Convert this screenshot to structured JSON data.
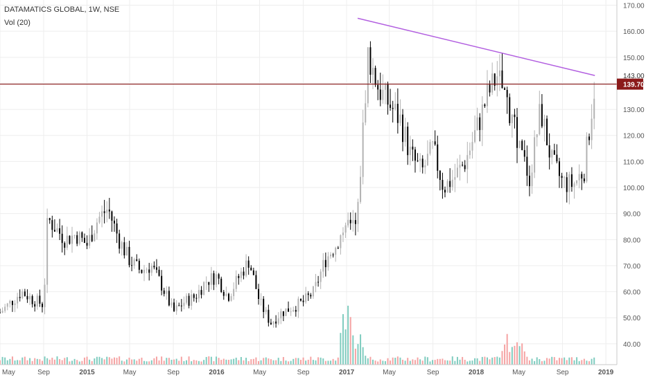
{
  "header": {
    "title": "DATAMATICS GLOBAL, 1W, NSE",
    "volume_indicator": "Vol (20)"
  },
  "colors": {
    "up_candle": "#b2b2b2",
    "down_candle": "#000000",
    "volume_up": "#7fccbf",
    "volume_down": "#f5a3a3",
    "trendline": "#b25fe0",
    "support_line": "#8b1a1a",
    "price_tag": "#8b1a1a",
    "grid": "#eeeeee",
    "axis_text": "#555555"
  },
  "chart_data": {
    "type": "candlestick",
    "symbol": "DATAMATICS GLOBAL",
    "interval": "1W",
    "exchange": "NSE",
    "y_axis": {
      "position": "right",
      "ylim": [
        32,
        172
      ],
      "ticks": [
        "40.00",
        "50.00",
        "60.00",
        "70.00",
        "80.00",
        "90.00",
        "100.00",
        "110.00",
        "120.00",
        "130.00",
        "140.00",
        "150.00",
        "160.00",
        "170.00"
      ]
    },
    "x_axis": {
      "start": "2014-05",
      "end": "2019-02",
      "tick_labels": [
        {
          "label": "May",
          "date": "2014-05"
        },
        {
          "label": "Sep",
          "date": "2014-09"
        },
        {
          "label": "2015",
          "date": "2015-01",
          "bold": true
        },
        {
          "label": "May",
          "date": "2015-05"
        },
        {
          "label": "Sep",
          "date": "2015-09"
        },
        {
          "label": "2016",
          "date": "2016-01",
          "bold": true
        },
        {
          "label": "May",
          "date": "2016-05"
        },
        {
          "label": "Sep",
          "date": "2016-09"
        },
        {
          "label": "2017",
          "date": "2017-01",
          "bold": true
        },
        {
          "label": "May",
          "date": "2017-05"
        },
        {
          "label": "Sep",
          "date": "2017-09"
        },
        {
          "label": "2018",
          "date": "2018-01",
          "bold": true
        },
        {
          "label": "May",
          "date": "2018-05"
        },
        {
          "label": "Sep",
          "date": "2018-09"
        },
        {
          "label": "2019",
          "date": "2019-01",
          "bold": true
        }
      ]
    },
    "price_path": [
      [
        "2014-05",
        52
      ],
      [
        "2014-06",
        56
      ],
      [
        "2014-07",
        60
      ],
      [
        "2014-08",
        57
      ],
      [
        "2014-09",
        55
      ],
      [
        "2014-09-12",
        88
      ],
      [
        "2014-10",
        85
      ],
      [
        "2014-11",
        80
      ],
      [
        "2014-12",
        82
      ],
      [
        "2015-01",
        78
      ],
      [
        "2015-02",
        88
      ],
      [
        "2015-03",
        92
      ],
      [
        "2015-04",
        80
      ],
      [
        "2015-05",
        72
      ],
      [
        "2015-06",
        68
      ],
      [
        "2015-07",
        70
      ],
      [
        "2015-08",
        62
      ],
      [
        "2015-09",
        52
      ],
      [
        "2015-10",
        56
      ],
      [
        "2015-11",
        58
      ],
      [
        "2015-12",
        64
      ],
      [
        "2016-01",
        66
      ],
      [
        "2016-02",
        58
      ],
      [
        "2016-03",
        65
      ],
      [
        "2016-04",
        72
      ],
      [
        "2016-05",
        56
      ],
      [
        "2016-06",
        48
      ],
      [
        "2016-07",
        52
      ],
      [
        "2016-08",
        54
      ],
      [
        "2016-09",
        56
      ],
      [
        "2016-10",
        60
      ],
      [
        "2016-11",
        72
      ],
      [
        "2016-12",
        78
      ],
      [
        "2017-01",
        86
      ],
      [
        "2017-02",
        90
      ],
      [
        "2017-02-20",
        130
      ],
      [
        "2017-03",
        152
      ],
      [
        "2017-04",
        138
      ],
      [
        "2017-05",
        132
      ],
      [
        "2017-06",
        126
      ],
      [
        "2017-07",
        112
      ],
      [
        "2017-08",
        106
      ],
      [
        "2017-09",
        115
      ],
      [
        "2017-10",
        100
      ],
      [
        "2017-11",
        104
      ],
      [
        "2017-12",
        110
      ],
      [
        "2018-01",
        122
      ],
      [
        "2018-02",
        135
      ],
      [
        "2018-03",
        143
      ],
      [
        "2018-04",
        132
      ],
      [
        "2018-05",
        115
      ],
      [
        "2018-06",
        104
      ],
      [
        "2018-07",
        130
      ],
      [
        "2018-08",
        110
      ],
      [
        "2018-09",
        102
      ],
      [
        "2018-10",
        101
      ],
      [
        "2018-11",
        107
      ],
      [
        "2018-12",
        140
      ]
    ],
    "volume_spikes": [
      {
        "date": "2017-01",
        "relative": 0.8
      },
      {
        "date": "2017-02",
        "relative": 0.45
      },
      {
        "date": "2018-04",
        "relative": 0.35
      },
      {
        "date": "2018-05",
        "relative": 0.35
      }
    ],
    "annotations": [
      {
        "type": "trendline",
        "from": {
          "date": "2017-02",
          "price": 165
        },
        "to": {
          "date": "2018-12",
          "price": 143
        }
      },
      {
        "type": "horizontal_line",
        "price": 139.7
      }
    ],
    "price_labels": [
      {
        "value": "143.00",
        "price": 143,
        "style": "plain"
      },
      {
        "value": "139.70",
        "price": 139.7,
        "style": "tag"
      }
    ]
  }
}
